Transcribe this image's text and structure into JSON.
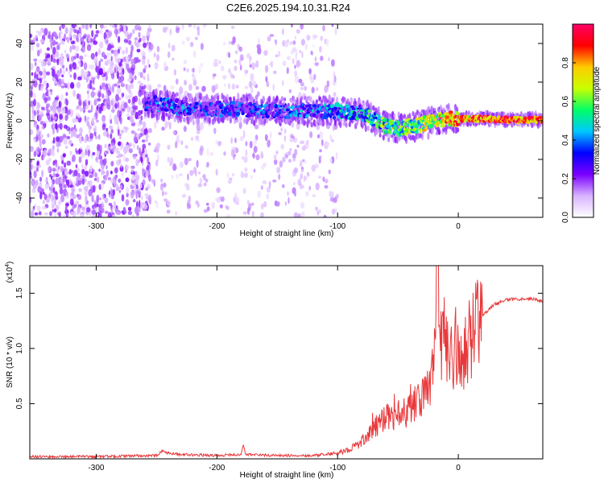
{
  "title": "C2E6.2025.194.10.31.R24",
  "chart_data": [
    {
      "type": "heatmap",
      "xlabel": "Height of straight line (km)",
      "ylabel": "Frequency (Hz)",
      "xlim": [
        -355,
        70
      ],
      "ylim": [
        -50,
        50
      ],
      "xticks": [
        -300,
        -200,
        -100,
        0
      ],
      "xtick_labels": [
        "-300",
        "-200",
        "-100",
        "0"
      ],
      "yticks": [
        -40,
        -20,
        0,
        20,
        40
      ],
      "ytick_labels": [
        "-40",
        "-20",
        "0",
        "20",
        "40"
      ],
      "grid": false,
      "colorbar": {
        "label": "Normalized spectral amplitude",
        "range": [
          0,
          1
        ],
        "ticks": [
          0.0,
          0.2,
          0.4,
          0.6,
          0.8
        ],
        "tick_labels": [
          "0.0",
          "0.2",
          "0.4",
          "0.6",
          "0.8"
        ],
        "colormap": [
          "#ffffff",
          "#d9b3ff",
          "#7a00ff",
          "#0000ff",
          "#00c8ff",
          "#00ff66",
          "#c8ff00",
          "#ffcc00",
          "#ff0000",
          "#ff0066"
        ]
      },
      "ridge": {
        "x": [
          -260,
          -240,
          -220,
          -200,
          -180,
          -160,
          -140,
          -120,
          -100,
          -80,
          -70,
          -60,
          -50,
          -40,
          -30,
          -20,
          -10,
          0,
          20,
          40,
          70
        ],
        "frequency": [
          9,
          8,
          6,
          6,
          6,
          5,
          5,
          5,
          5,
          4,
          1,
          -3,
          -4,
          -3,
          -2,
          0,
          1,
          1,
          1,
          0.5,
          0.5
        ],
        "amplitude": [
          0.3,
          0.35,
          0.3,
          0.3,
          0.3,
          0.3,
          0.35,
          0.35,
          0.4,
          0.45,
          0.55,
          0.6,
          0.6,
          0.6,
          0.65,
          0.7,
          0.8,
          0.85,
          0.9,
          0.9,
          0.9
        ]
      },
      "noise_bands": [
        {
          "x_range": [
            -355,
            -255
          ],
          "level": "dense"
        },
        {
          "x_range": [
            -255,
            -100
          ],
          "level": "sparse"
        }
      ]
    },
    {
      "type": "line",
      "xlabel": "Height of straight line (km)",
      "ylabel": "SNR (10 * v/v)",
      "y_multiplier_label": "(x10",
      "y_multiplier_exp": "4",
      "xlim": [
        -355,
        70
      ],
      "ylim": [
        0,
        1.75
      ],
      "xticks": [
        -300,
        -200,
        -100,
        0
      ],
      "xtick_labels": [
        "-300",
        "-200",
        "-100",
        "0"
      ],
      "yticks": [
        0.5,
        1.0,
        1.5
      ],
      "ytick_labels": [
        "0.5",
        "1.0",
        "1.5"
      ],
      "grid": false,
      "series": [
        {
          "color": "#e8383b",
          "x": [
            -355,
            -300,
            -250,
            -245,
            -240,
            -230,
            -200,
            -180,
            -178,
            -176,
            -150,
            -120,
            -100,
            -90,
            -80,
            -75,
            -70,
            -65,
            -60,
            -55,
            -50,
            -45,
            -40,
            -35,
            -30,
            -25,
            -20,
            -17,
            -15,
            -12,
            -10,
            -5,
            0,
            5,
            10,
            15,
            20,
            30,
            40,
            50,
            60,
            70
          ],
          "y": [
            0.02,
            0.02,
            0.03,
            0.07,
            0.05,
            0.04,
            0.03,
            0.04,
            0.12,
            0.04,
            0.03,
            0.03,
            0.05,
            0.09,
            0.15,
            0.22,
            0.3,
            0.32,
            0.35,
            0.38,
            0.42,
            0.38,
            0.48,
            0.5,
            0.55,
            0.6,
            0.85,
            1.75,
            0.9,
            1.1,
            1.0,
            0.9,
            1.05,
            0.95,
            1.1,
            1.2,
            1.3,
            1.4,
            1.44,
            1.45,
            1.45,
            1.43
          ]
        }
      ]
    }
  ]
}
